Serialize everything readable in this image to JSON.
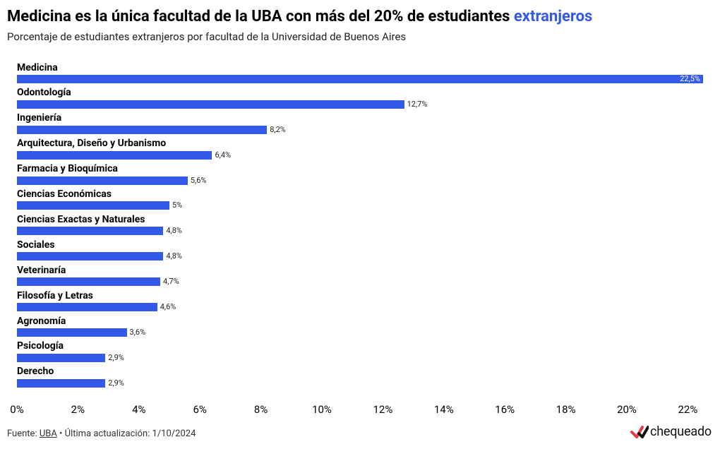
{
  "title_main": "Medicina es la única facultad de la UBA con más del 20% de estudiantes ",
  "title_highlight": "extranjeros",
  "subtitle": "Porcentaje de estudiantes extranjeros por facultad de la Universidad de Buenos Aires",
  "footer_prefix": "Fuente: ",
  "footer_source": "UBA",
  "footer_suffix": " • Última actualización: 1/10/2024",
  "logo_text": "chequeado",
  "chart": {
    "type": "bar-horizontal",
    "x_min": 0,
    "x_max": 22.5,
    "x_ticks": [
      0,
      2,
      4,
      6,
      8,
      10,
      12,
      14,
      16,
      18,
      20,
      22
    ],
    "bar_color": "#3259e8",
    "highlight_color": "#3259e8",
    "background_color": "#ffffff",
    "label_fontsize": 14,
    "value_fontsize": 11,
    "tick_fontsize": 15,
    "title_fontsize": 22,
    "subtitle_fontsize": 15,
    "bars": [
      {
        "label": "Medicina",
        "value": 22.5,
        "value_text": "22,5%",
        "value_pos": "inside"
      },
      {
        "label": "Odontología",
        "value": 12.7,
        "value_text": "12,7%",
        "value_pos": "outside"
      },
      {
        "label": "Ingeniería",
        "value": 8.2,
        "value_text": "8,2%",
        "value_pos": "outside"
      },
      {
        "label": "Arquitectura, Diseño y Urbanismo",
        "value": 6.4,
        "value_text": "6,4%",
        "value_pos": "outside"
      },
      {
        "label": "Farmacia y Bioquímica",
        "value": 5.6,
        "value_text": "5,6%",
        "value_pos": "outside"
      },
      {
        "label": "Ciencias Económicas",
        "value": 5.0,
        "value_text": "5%",
        "value_pos": "outside"
      },
      {
        "label": "Ciencias Exactas y Naturales",
        "value": 4.8,
        "value_text": "4,8%",
        "value_pos": "outside"
      },
      {
        "label": "Sociales",
        "value": 4.8,
        "value_text": "4,8%",
        "value_pos": "outside"
      },
      {
        "label": "Veterinaría",
        "value": 4.7,
        "value_text": "4,7%",
        "value_pos": "outside"
      },
      {
        "label": "Filosofía y Letras",
        "value": 4.6,
        "value_text": "4,6%",
        "value_pos": "outside"
      },
      {
        "label": "Agronomía",
        "value": 3.6,
        "value_text": "3,6%",
        "value_pos": "outside"
      },
      {
        "label": "Psicología",
        "value": 2.9,
        "value_text": "2,9%",
        "value_pos": "outside"
      },
      {
        "label": "Derecho",
        "value": 2.9,
        "value_text": "2,9%",
        "value_pos": "outside"
      }
    ]
  }
}
